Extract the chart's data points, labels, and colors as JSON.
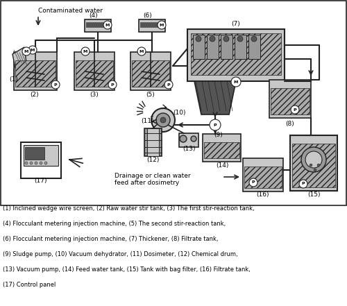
{
  "bg_color": "#ffffff",
  "caption_lines": [
    "(1) Inclined wedge wire screen, (2) Raw water stir tank, (3) The first stir-reaction tank,",
    "(4) Flocculant metering injection machine, (5) The second stir-reaction tank,",
    "(6) Flocculant metering injection machine, (7) Thickener, (8) Filtrate tank,",
    "(9) Sludge pump, (10) Vacuum dehydrator, (11) Dosimeter, (12) Chemical drum,",
    "(13) Vacuum pump, (14) Feed water tank, (15) Tank with bag filter, (16) Filtrate tank,",
    "(17) Control panel"
  ],
  "contaminated_water_label": "Contaminated water",
  "drainage_label": "Drainage or clean water\nfeed after dosimetry"
}
